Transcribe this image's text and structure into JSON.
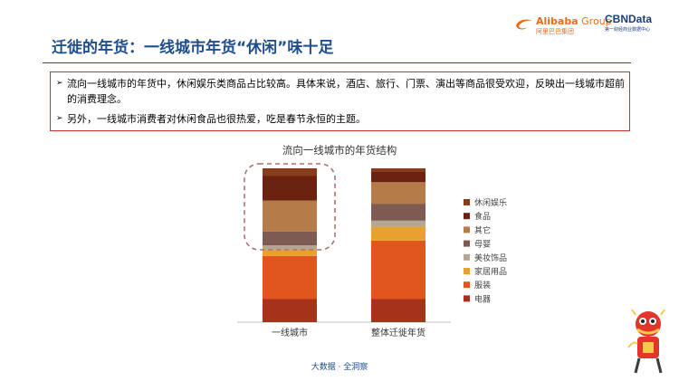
{
  "slide": {
    "title": "迁徙的年货：一线城市年货“休闲”味十足",
    "footer": "大数据 · 全洞察"
  },
  "logos": {
    "alibaba_word": "Alibaba",
    "alibaba_group": " Group",
    "alibaba_sub": "阿里巴巴集团",
    "cbn_word": "CBNData",
    "cbn_sub": "第一财经商业数据中心"
  },
  "bullets": [
    "流向一线城市的年货中，休闲娱乐类商品占比较高。具体来说，酒店、旅行、门票、演出等商品很受欢迎，反映出一线城市超前的消费理念。",
    "另外，一线城市消费者对休闲食品也很热爱，吃是春节永恒的主题。"
  ],
  "colors": {
    "title": "#1f4e8c",
    "accent_red": "#c9302c",
    "highlight_dash": "#b07070"
  },
  "chart_data": {
    "type": "bar",
    "stacked": true,
    "title": "流向一线城市的年货结构",
    "categories": [
      "一线城市",
      "整体迁徙年货"
    ],
    "series": [
      {
        "name": "电器",
        "color": "#a6321a",
        "values": [
          15,
          15
        ]
      },
      {
        "name": "服装",
        "color": "#e0561e",
        "values": [
          28,
          38
        ]
      },
      {
        "name": "家居用品",
        "color": "#e8a12e",
        "values": [
          4,
          9
        ]
      },
      {
        "name": "美妆饰品",
        "color": "#b5a593",
        "values": [
          3,
          4
        ]
      },
      {
        "name": "母婴",
        "color": "#7d5a52",
        "values": [
          9,
          11
        ]
      },
      {
        "name": "其它",
        "color": "#b57c4a",
        "values": [
          20,
          14
        ]
      },
      {
        "name": "食品",
        "color": "#6b2210",
        "values": [
          16,
          7
        ]
      },
      {
        "name": "休闲娱乐",
        "color": "#8a3c1a",
        "values": [
          5,
          2
        ]
      }
    ],
    "ylim": [
      0,
      100
    ],
    "grid": false,
    "legend": "right",
    "highlight": {
      "category": "一线城市",
      "series": [
        "休闲娱乐",
        "食品",
        "其它",
        "母婴"
      ]
    }
  }
}
